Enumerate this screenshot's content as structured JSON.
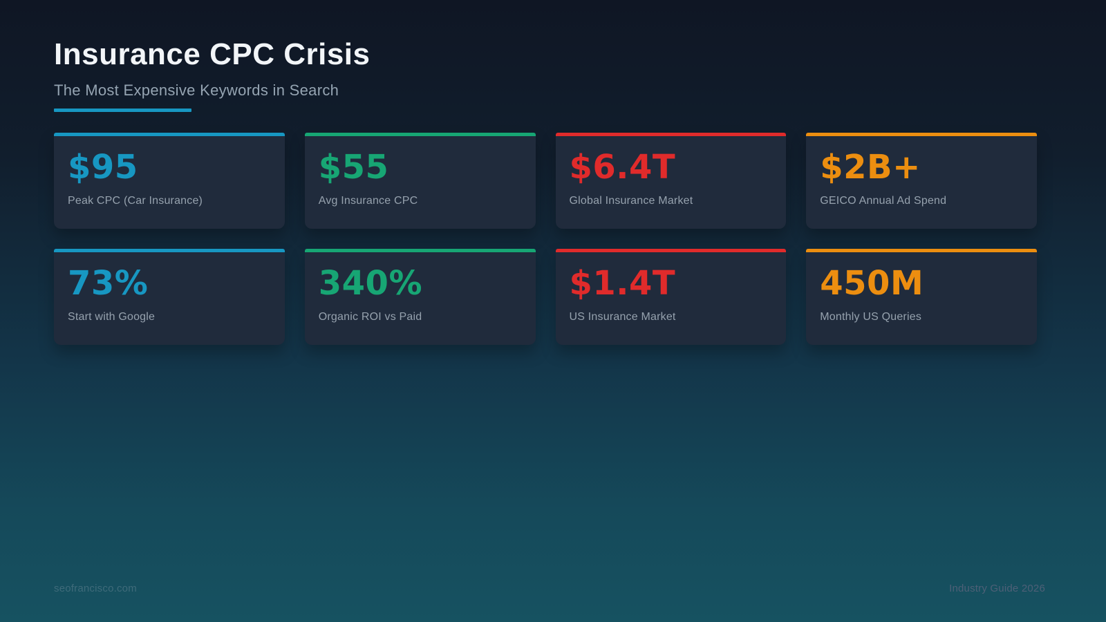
{
  "page": {
    "title": "Insurance CPC Crisis",
    "subtitle": "The Most Expensive Keywords in Search"
  },
  "footer": {
    "left": "seofrancisco.com",
    "right": "Industry Guide 2026"
  },
  "colors": {
    "cyan": "#1797c2",
    "green": "#17a674",
    "red": "#e02b2b",
    "orange": "#ec8e10",
    "card_background": "#202b3c",
    "background_top": "#0f1624",
    "background_bottom": "#165261",
    "title_text": "#f2f5f8",
    "subtitle_text": "#95a4b2",
    "label_text": "#96a2ae"
  },
  "chart_data": {
    "type": "table",
    "title": "Insurance CPC Crisis",
    "subtitle": "The Most Expensive Keywords in Search",
    "layout": "4x2 stat cards, accent-colored top bars and values",
    "stats": [
      {
        "value": "$95",
        "label": "Peak CPC (Car Insurance)",
        "accent": "cyan"
      },
      {
        "value": "$55",
        "label": "Avg Insurance CPC",
        "accent": "green"
      },
      {
        "value": "$6.4T",
        "label": "Global Insurance Market",
        "accent": "red"
      },
      {
        "value": "$2B+",
        "label": "GEICO Annual Ad Spend",
        "accent": "orange"
      },
      {
        "value": "73%",
        "label": "Start with Google",
        "accent": "cyan"
      },
      {
        "value": "340%",
        "label": "Organic ROI vs Paid",
        "accent": "green"
      },
      {
        "value": "$1.4T",
        "label": "US Insurance Market",
        "accent": "red"
      },
      {
        "value": "450M",
        "label": "Monthly US Queries",
        "accent": "orange"
      }
    ]
  }
}
